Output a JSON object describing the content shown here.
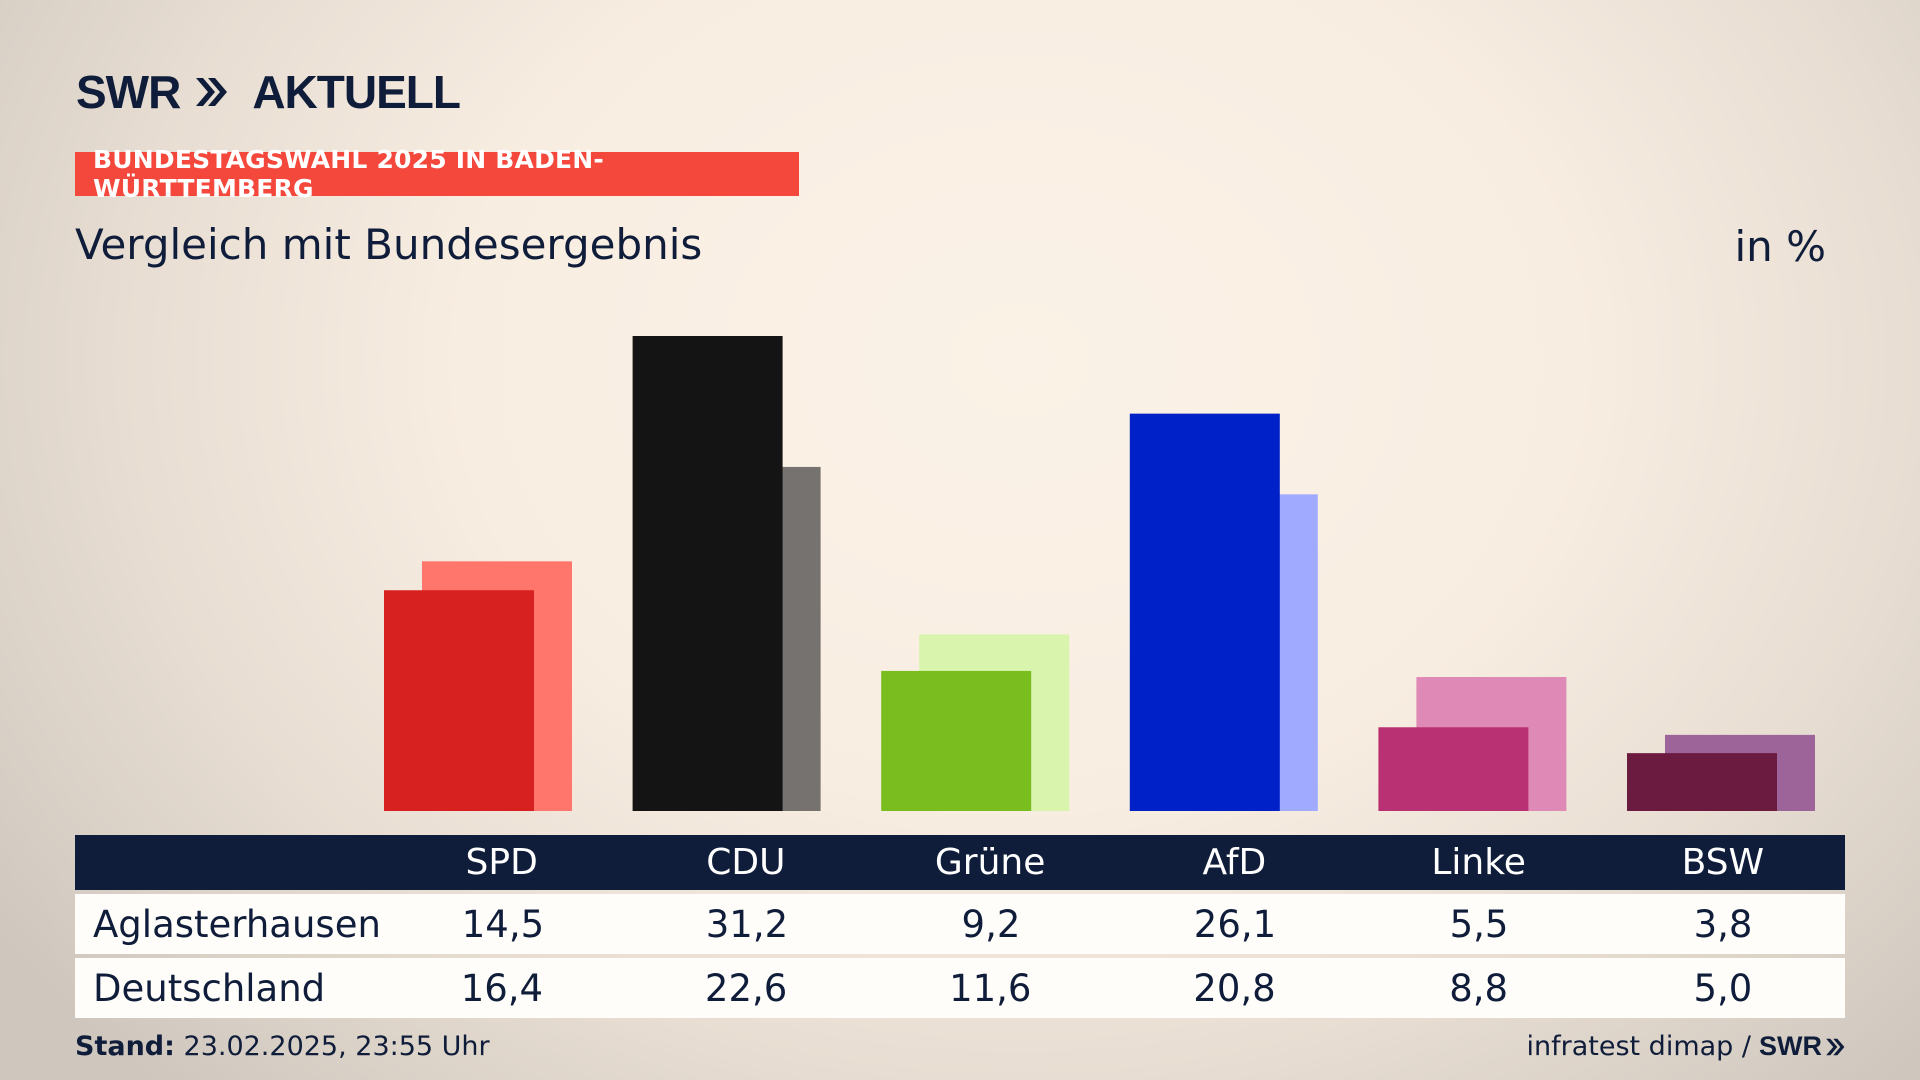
{
  "header": {
    "logo_text": "SWR",
    "logo_suffix": "AKTUELL",
    "banner": "BUNDESTAGSWAHL 2025 IN BADEN-WÜRTTEMBERG",
    "subtitle": "Vergleich mit Bundesergebnis",
    "unit": "in %"
  },
  "table": {
    "columns": [
      "SPD",
      "CDU",
      "Grüne",
      "AfD",
      "Linke",
      "BSW"
    ],
    "rows": [
      {
        "label": "Aglasterhausen",
        "values": [
          "14,5",
          "31,2",
          "9,2",
          "26,1",
          "5,5",
          "3,8"
        ]
      },
      {
        "label": "Deutschland",
        "values": [
          "16,4",
          "22,6",
          "11,6",
          "20,8",
          "8,8",
          "5,0"
        ]
      }
    ]
  },
  "footer": {
    "stand_label": "Stand:",
    "stand_value": "23.02.2025, 23:55 Uhr",
    "source": "infratest dimap /",
    "brand": "SWR"
  },
  "colors": {
    "navy": "#0f1d3a",
    "banner": "#f4483c",
    "local": [
      "#d72020",
      "#141414",
      "#7abd1e",
      "#0021c8",
      "#b93172",
      "#6b1a40"
    ],
    "national": [
      "#ff766d",
      "#76726f",
      "#d8f4ad",
      "#a0abff",
      "#df89b6",
      "#9d6499"
    ]
  },
  "chart_data": {
    "type": "bar",
    "categories": [
      "SPD",
      "CDU",
      "Grüne",
      "AfD",
      "Linke",
      "BSW"
    ],
    "series": [
      {
        "name": "Aglasterhausen",
        "values": [
          14.5,
          31.2,
          9.2,
          26.1,
          5.5,
          3.8
        ]
      },
      {
        "name": "Deutschland",
        "values": [
          16.4,
          22.6,
          11.6,
          20.8,
          8.8,
          5.0
        ]
      }
    ],
    "title": "Vergleich mit Bundesergebnis",
    "ylabel": "in %",
    "ylim": [
      0,
      31.2
    ],
    "grid": false,
    "legend": "none"
  }
}
